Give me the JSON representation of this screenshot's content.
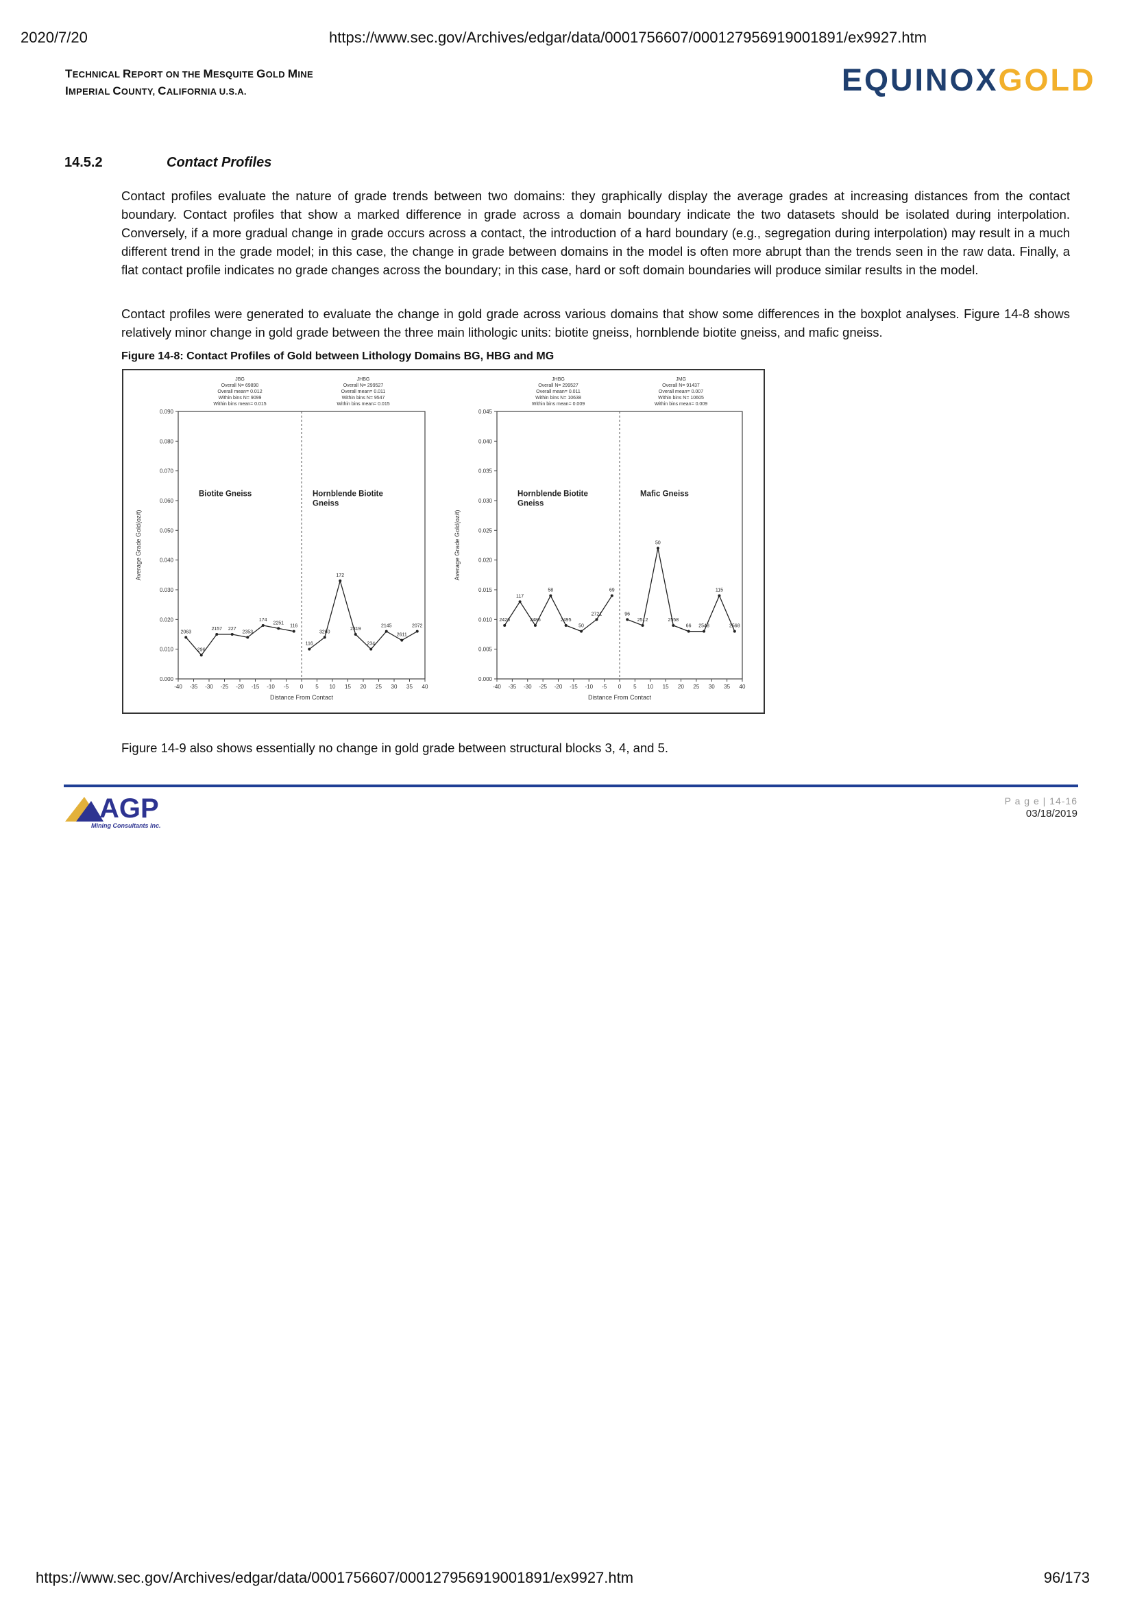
{
  "browser": {
    "date": "2020/7/20",
    "url": "https://www.sec.gov/Archives/edgar/data/0001756607/000127956919001891/ex9927.htm",
    "page_counter": "96/173"
  },
  "header": {
    "title_line1_cap1": "T",
    "title_line1_rest1": "ECHNICAL ",
    "title_line1_cap2": "R",
    "title_line1_rest2": "EPORT ON THE ",
    "title_line1_cap3": "M",
    "title_line1_rest3": "ESQUITE ",
    "title_line1_cap4": "G",
    "title_line1_rest4": "OLD ",
    "title_line1_cap5": "M",
    "title_line1_rest5": "INE",
    "title_line2_cap1": "I",
    "title_line2_rest1": "MPERIAL ",
    "title_line2_cap2": "C",
    "title_line2_rest2": "OUNTY, ",
    "title_line2_cap3": "C",
    "title_line2_rest3": "ALIFORNIA U.S.A.",
    "brand_part1": "EQUINOX",
    "brand_part2": "GOLD",
    "brand_color1": "#1f3f6f",
    "brand_color2": "#f2b02b"
  },
  "section": {
    "number": "14.5.2",
    "title": "Contact Profiles",
    "para1": "Contact profiles evaluate the nature of grade trends between two domains: they graphically display the average grades at increasing distances from the contact boundary. Contact profiles that show a marked difference in grade across a domain boundary indicate the two datasets should be isolated during interpolation. Conversely, if a more gradual change in grade occurs across a contact, the introduction of a hard boundary (e.g., segregation during interpolation) may result in a much different trend in the grade model; in this case, the change in grade between domains in the model is often more abrupt than the trends seen in the raw data. Finally, a flat contact profile indicates no grade changes across the boundary; in this case, hard or soft domain boundaries will produce similar results in the model.",
    "para2": "Contact profiles were generated to evaluate the change in gold grade across various domains that show some differences in the boxplot analyses. Figure 14-8 shows relatively minor change in gold grade between the three main lithologic units: biotite gneiss, hornblende biotite gneiss, and mafic gneiss.",
    "figure_caption": "Figure 14-8: Contact Profiles of Gold between Lithology Domains BG, HBG and MG",
    "para3": "Figure 14-9 also shows essentially no change in gold grade between structural blocks 3, 4, and 5."
  },
  "footer": {
    "logo_text": "AGP",
    "logo_sub": "Mining Consultants Inc.",
    "page_label": "P a g e | 14-16",
    "date": "03/18/2019"
  },
  "chart_data": [
    {
      "type": "line",
      "xlabel": "Distance From Contact",
      "ylabel": "Average Grade Gold(oz/t)",
      "ylim": [
        0,
        0.09
      ],
      "yticks": [
        "0.000",
        "0.010",
        "0.020",
        "0.030",
        "0.040",
        "0.050",
        "0.060",
        "0.070",
        "0.080",
        "0.090"
      ],
      "xticks": [
        "-40",
        "-35",
        "-30",
        "-25",
        "-20",
        "-15",
        "-10",
        "-5",
        "0",
        "5",
        "10",
        "15",
        "20",
        "25",
        "30",
        "35",
        "40"
      ],
      "left_stats": [
        "JBG",
        "Overall N=   69890",
        "Overall mean=   0.012",
        "Within bins N=   9099",
        "Within bins mean=   0.015"
      ],
      "right_stats": [
        "JHBG",
        "Overall N=   299527",
        "Overall mean=   0.011",
        "Within bins N=   9547",
        "Within bins mean=   0.015"
      ],
      "left_label": [
        "Biotite Gneiss"
      ],
      "right_label": [
        "Hornblende Biotite",
        "Gneiss"
      ],
      "x": [
        -37.5,
        -32.5,
        -27.5,
        -22.5,
        -17.5,
        -12.5,
        -7.5,
        -2.5,
        2.5,
        7.5,
        12.5,
        17.5,
        22.5,
        27.5,
        32.5,
        37.5
      ],
      "values": [
        0.014,
        0.008,
        0.015,
        0.015,
        0.014,
        0.018,
        0.017,
        0.016,
        0.01,
        0.014,
        0.033,
        0.015,
        0.01,
        0.016,
        0.013,
        0.016
      ],
      "point_labels": [
        "2063",
        "296",
        "2157",
        "227",
        "2353",
        "174",
        "2251",
        "116",
        "116",
        "3260",
        "172",
        "2319",
        "234",
        "2145",
        "2611",
        "2072"
      ]
    },
    {
      "type": "line",
      "xlabel": "Distance From Contact",
      "ylabel": "Average Grade Gold(oz/t)",
      "ylim": [
        0,
        0.045
      ],
      "yticks": [
        "0.000",
        "0.005",
        "0.010",
        "0.015",
        "0.020",
        "0.025",
        "0.030",
        "0.035",
        "0.040",
        "0.045"
      ],
      "xticks": [
        "-40",
        "-35",
        "-30",
        "-25",
        "-20",
        "-15",
        "-10",
        "-5",
        "0",
        "5",
        "10",
        "15",
        "20",
        "25",
        "30",
        "35",
        "40"
      ],
      "left_stats": [
        "JHBG",
        "Overall N=   299527",
        "Overall mean=   0.011",
        "Within bins N=   10638",
        "Within bins mean=   0.009"
      ],
      "right_stats": [
        "JMG",
        "Overall N=   91437",
        "Overall mean=   0.007",
        "Within bins N=   10605",
        "Within bins mean=   0.009"
      ],
      "left_label": [
        "Hornblende Biotite",
        "Gneiss"
      ],
      "right_label": [
        "Mafic Gneiss"
      ],
      "x": [
        -37.5,
        -32.5,
        -27.5,
        -22.5,
        -17.5,
        -12.5,
        -7.5,
        -2.5,
        2.5,
        7.5,
        12.5,
        17.5,
        22.5,
        27.5,
        32.5,
        37.5
      ],
      "values": [
        0.009,
        0.013,
        0.009,
        0.014,
        0.009,
        0.008,
        0.01,
        0.014,
        0.01,
        0.009,
        0.022,
        0.009,
        0.008,
        0.008,
        0.014,
        0.008
      ],
      "point_labels": [
        "2426",
        "117",
        "2485",
        "58",
        "2495",
        "50",
        "2721",
        "69",
        "96",
        "2512",
        "50",
        "2558",
        "66",
        "2548",
        "115",
        "2568"
      ]
    }
  ]
}
